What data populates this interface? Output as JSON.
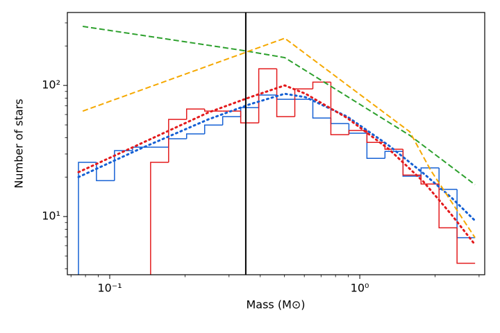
{
  "chart_data": {
    "type": "line",
    "xlabel": "Mass (M⊙)",
    "ylabel": "Number of stars",
    "xlog": true,
    "ylog": true,
    "xlim": [
      0.0677,
      3.16
    ],
    "ylim": [
      3.6,
      360
    ],
    "xticks": [
      {
        "value": 0.1,
        "label": "10⁻¹"
      },
      {
        "value": 1,
        "label": "10⁰"
      }
    ],
    "yticks": [
      {
        "value": 10,
        "label": "10¹"
      },
      {
        "value": 100,
        "label": "10²"
      }
    ],
    "xminorticks": [
      0.07,
      0.08,
      0.09,
      0.2,
      0.3,
      0.4,
      0.5,
      0.6,
      0.7,
      0.8,
      0.9,
      2,
      3
    ],
    "yminorticks": [
      4,
      5,
      6,
      7,
      8,
      9,
      20,
      30,
      40,
      50,
      60,
      70,
      80,
      90,
      200,
      300
    ],
    "vline": {
      "x": 0.35,
      "color": "#000000"
    },
    "series": [
      {
        "type": "step",
        "color": "#1560d4",
        "bins": [
          0.075,
          0.0885,
          0.1045,
          0.1234,
          0.1457,
          0.172,
          0.203,
          0.2397,
          0.283,
          0.3341,
          0.3945,
          0.4657,
          0.5498,
          0.6491,
          0.7663,
          0.9047,
          1.068,
          1.261,
          1.489,
          1.758,
          2.075,
          2.449,
          2.892
        ],
        "values": [
          25.9,
          18.8,
          31.8,
          33.8,
          33.8,
          39.2,
          42.7,
          49.9,
          57.8,
          67.7,
          84.4,
          78.4,
          78.4,
          56.4,
          51.2,
          43.2,
          27.8,
          31.4,
          20.3,
          23.5,
          16.1,
          6.9
        ]
      },
      {
        "type": "step",
        "color": "#e31a1c",
        "bins": [
          0.075,
          0.0885,
          0.1045,
          0.1234,
          0.1457,
          0.172,
          0.203,
          0.2397,
          0.283,
          0.3341,
          0.3945,
          0.4657,
          0.5498,
          0.6491,
          0.7663,
          0.9047,
          1.068,
          1.261,
          1.489,
          1.758,
          2.075,
          2.449,
          2.892
        ],
        "values": [
          null,
          null,
          null,
          null,
          25.9,
          55.1,
          66.1,
          63.7,
          63.7,
          51.8,
          134,
          57.8,
          94.1,
          106,
          42.1,
          45.3,
          36.8,
          32.6,
          20.7,
          17.7,
          8.2,
          4.4
        ]
      },
      {
        "type": "line",
        "linestyle": "dotted",
        "color": "#1560d4",
        "x": [
          0.075,
          0.131,
          0.248,
          0.364,
          0.501,
          0.607,
          0.891,
          1.309,
          1.8,
          2.33,
          2.89
        ],
        "values": [
          20.0,
          32.6,
          55.1,
          71.9,
          86.4,
          81.3,
          57.8,
          34.7,
          21.3,
          13.9,
          9.3
        ]
      },
      {
        "type": "line",
        "linestyle": "dotted",
        "color": "#e31a1c",
        "x": [
          0.075,
          0.131,
          0.248,
          0.364,
          0.501,
          0.607,
          0.891,
          1.309,
          1.8,
          2.33,
          2.89
        ],
        "values": [
          21.8,
          35.5,
          62.2,
          81.3,
          100,
          86.4,
          56.4,
          32.6,
          18.4,
          10.3,
          6.1
        ]
      },
      {
        "type": "line",
        "linestyle": "dashed",
        "color": "#2ca02c",
        "x": [
          0.078,
          0.346,
          0.501,
          1.585,
          2.89
        ],
        "values": [
          282,
          184,
          163,
          41.6,
          17.5
        ]
      },
      {
        "type": "line",
        "linestyle": "dashed",
        "color": "#f5a800",
        "x": [
          0.078,
          0.501,
          1.585,
          1.92,
          2.89
        ],
        "values": [
          63.7,
          229,
          44.3,
          22.6,
          6.9
        ]
      }
    ]
  }
}
